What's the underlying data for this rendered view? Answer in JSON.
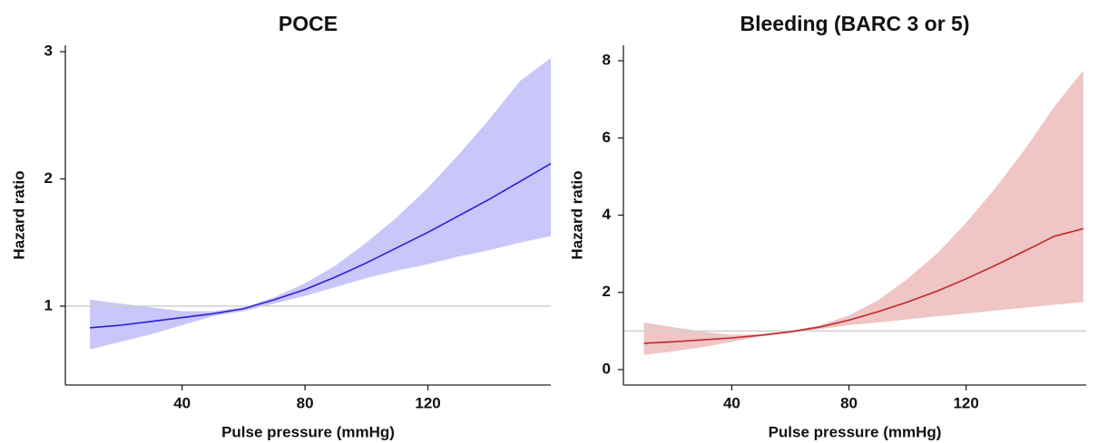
{
  "chart_data": [
    {
      "type": "line",
      "title": "POCE",
      "x_label": "Pulse pressure (mmHg)",
      "y_label": "Hazard ratio",
      "x": [
        10,
        20,
        30,
        40,
        50,
        60,
        70,
        80,
        90,
        100,
        110,
        120,
        130,
        140,
        150,
        160
      ],
      "values": [
        0.83,
        0.85,
        0.88,
        0.91,
        0.94,
        0.98,
        1.05,
        1.13,
        1.23,
        1.34,
        1.46,
        1.58,
        1.71,
        1.84,
        1.98,
        2.12
      ],
      "upper": [
        1.05,
        1.02,
        0.99,
        0.96,
        0.96,
        0.99,
        1.07,
        1.18,
        1.32,
        1.5,
        1.7,
        1.93,
        2.19,
        2.47,
        2.77,
        2.95
      ],
      "lower": [
        0.66,
        0.72,
        0.78,
        0.85,
        0.92,
        0.96,
        1.02,
        1.08,
        1.15,
        1.22,
        1.28,
        1.33,
        1.39,
        1.44,
        1.5,
        1.55
      ],
      "color": "#2a1fd6",
      "band_color": "#c9c6f9",
      "reference_line": 1,
      "xlim": [
        2,
        160
      ],
      "xticks": [
        40,
        80,
        120
      ],
      "ylim": [
        0.38,
        3.05
      ],
      "yticks": [
        1,
        2,
        3
      ]
    },
    {
      "type": "line",
      "title": "Bleeding (BARC 3 or 5)",
      "x_label": "Pulse pressure (mmHg)",
      "y_label": "Hazard ratio",
      "x": [
        10,
        20,
        30,
        40,
        50,
        60,
        70,
        80,
        90,
        100,
        110,
        120,
        130,
        140,
        150,
        160
      ],
      "values": [
        0.68,
        0.72,
        0.77,
        0.82,
        0.89,
        0.98,
        1.1,
        1.28,
        1.5,
        1.75,
        2.03,
        2.35,
        2.7,
        3.07,
        3.45,
        3.65
      ],
      "upper": [
        1.22,
        1.1,
        0.98,
        0.9,
        0.92,
        1.0,
        1.15,
        1.4,
        1.8,
        2.35,
        3.0,
        3.8,
        4.7,
        5.7,
        6.8,
        7.75
      ],
      "lower": [
        0.38,
        0.47,
        0.58,
        0.72,
        0.86,
        0.95,
        1.05,
        1.15,
        1.22,
        1.3,
        1.38,
        1.45,
        1.53,
        1.6,
        1.68,
        1.75
      ],
      "color": "#c0282a",
      "band_color": "#efc5c5",
      "reference_line": 1,
      "xlim": [
        3,
        161
      ],
      "xticks": [
        40,
        80,
        120
      ],
      "ylim": [
        -0.4,
        8.4
      ],
      "yticks": [
        0,
        2,
        4,
        6,
        8
      ]
    }
  ]
}
